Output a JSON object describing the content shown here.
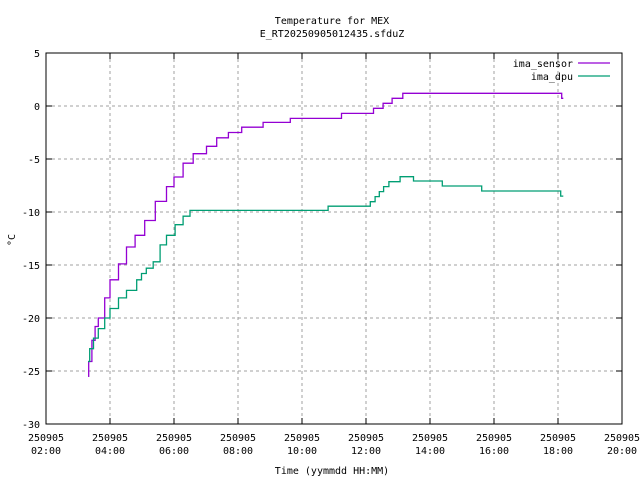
{
  "chart_data": {
    "type": "line",
    "title": "Temperature for MEX",
    "subtitle": "E_RT20250905012435.sfduZ",
    "xlabel": "Time (yymmdd HH:MM)",
    "ylabel": "°C",
    "xlim": [
      "250905 02:00",
      "250905 20:00"
    ],
    "ylim": [
      -30,
      5
    ],
    "grid": true,
    "legend_position": "top-right",
    "x_ticks": [
      {
        "date": "250905",
        "time": "02:00"
      },
      {
        "date": "250905",
        "time": "04:00"
      },
      {
        "date": "250905",
        "time": "06:00"
      },
      {
        "date": "250905",
        "time": "08:00"
      },
      {
        "date": "250905",
        "time": "10:00"
      },
      {
        "date": "250905",
        "time": "12:00"
      },
      {
        "date": "250905",
        "time": "14:00"
      },
      {
        "date": "250905",
        "time": "16:00"
      },
      {
        "date": "250905",
        "time": "18:00"
      },
      {
        "date": "250905",
        "time": "20:00"
      }
    ],
    "y_ticks": [
      "5",
      "0",
      "-5",
      "-10",
      "-15",
      "-20",
      "-25",
      "-30"
    ],
    "series": [
      {
        "name": "ima_sensor",
        "color": "#9400d3",
        "style": "steps",
        "points": [
          [
            "03:19",
            -25.5
          ],
          [
            "03:20",
            -24.1
          ],
          [
            "03:26",
            -22.1
          ],
          [
            "03:32",
            -20.8
          ],
          [
            "03:38",
            -20.0
          ],
          [
            "03:50",
            -18.1
          ],
          [
            "04:00",
            -16.4
          ],
          [
            "04:16",
            -14.9
          ],
          [
            "04:31",
            -13.3
          ],
          [
            "04:47",
            -12.2
          ],
          [
            "05:05",
            -10.8
          ],
          [
            "05:25",
            -9.0
          ],
          [
            "05:46",
            -7.6
          ],
          [
            "06:00",
            -6.7
          ],
          [
            "06:17",
            -5.4
          ],
          [
            "06:36",
            -4.5
          ],
          [
            "07:01",
            -3.8
          ],
          [
            "07:20",
            -3.0
          ],
          [
            "07:42",
            -2.5
          ],
          [
            "08:07",
            -2.0
          ],
          [
            "08:47",
            -1.55
          ],
          [
            "09:38",
            -1.17
          ],
          [
            "11:14",
            -0.7
          ],
          [
            "12:14",
            -0.22
          ],
          [
            "12:32",
            0.25
          ],
          [
            "12:49",
            0.73
          ],
          [
            "13:09",
            1.2
          ],
          [
            "18:07",
            0.73
          ],
          [
            "18:10",
            0.73
          ]
        ]
      },
      {
        "name": "ima_dpu",
        "color": "#009e73",
        "style": "steps",
        "points": [
          [
            "03:19",
            -24.1
          ],
          [
            "03:22",
            -22.9
          ],
          [
            "03:29",
            -21.9
          ],
          [
            "03:38",
            -21.0
          ],
          [
            "03:50",
            -20.0
          ],
          [
            "04:00",
            -19.1
          ],
          [
            "04:16",
            -18.1
          ],
          [
            "04:31",
            -17.4
          ],
          [
            "04:50",
            -16.4
          ],
          [
            "04:59",
            -15.8
          ],
          [
            "05:08",
            -15.3
          ],
          [
            "05:21",
            -14.7
          ],
          [
            "05:34",
            -13.1
          ],
          [
            "05:46",
            -12.2
          ],
          [
            "06:02",
            -11.2
          ],
          [
            "06:17",
            -10.4
          ],
          [
            "06:30",
            -9.85
          ],
          [
            "10:49",
            -9.45
          ],
          [
            "12:08",
            -9.03
          ],
          [
            "12:17",
            -8.55
          ],
          [
            "12:25",
            -8.08
          ],
          [
            "12:33",
            -7.6
          ],
          [
            "12:43",
            -7.14
          ],
          [
            "13:04",
            -6.67
          ],
          [
            "13:29",
            -7.08
          ],
          [
            "14:23",
            -7.55
          ],
          [
            "15:37",
            -8.02
          ],
          [
            "18:05",
            -8.5
          ],
          [
            "18:10",
            -8.5
          ]
        ]
      }
    ]
  }
}
